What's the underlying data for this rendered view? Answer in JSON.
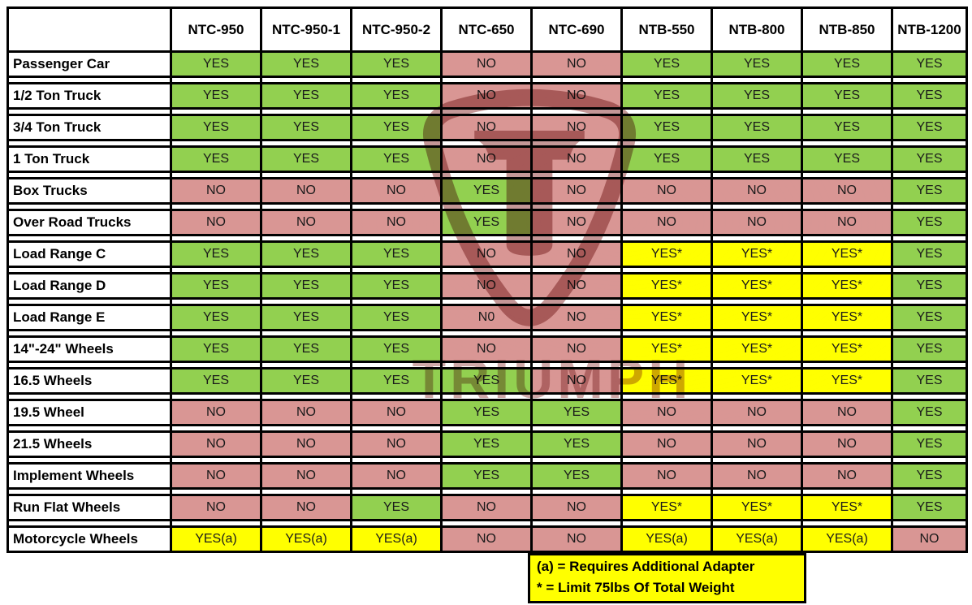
{
  "chart_data": {
    "type": "table",
    "columns": [
      "NTC-950",
      "NTC-950-1",
      "NTC-950-2",
      "NTC-650",
      "NTC-690",
      "NTB-550",
      "NTB-800",
      "NTB-850",
      "NTB-1200"
    ],
    "rows": [
      {
        "label": "Passenger Car",
        "values": [
          "YES",
          "YES",
          "YES",
          "NO",
          "NO",
          "YES",
          "YES",
          "YES",
          "YES"
        ]
      },
      {
        "label": "1/2 Ton Truck",
        "values": [
          "YES",
          "YES",
          "YES",
          "NO",
          "NO",
          "YES",
          "YES",
          "YES",
          "YES"
        ]
      },
      {
        "label": "3/4 Ton Truck",
        "values": [
          "YES",
          "YES",
          "YES",
          "NO",
          "NO",
          "YES",
          "YES",
          "YES",
          "YES"
        ]
      },
      {
        "label": "1 Ton Truck",
        "values": [
          "YES",
          "YES",
          "YES",
          "NO",
          "NO",
          "YES",
          "YES",
          "YES",
          "YES"
        ]
      },
      {
        "label": "Box Trucks",
        "values": [
          "NO",
          "NO",
          "NO",
          "YES",
          "NO",
          "NO",
          "NO",
          "NO",
          "YES"
        ]
      },
      {
        "label": "Over Road Trucks",
        "values": [
          "NO",
          "NO",
          "NO",
          "YES",
          "NO",
          "NO",
          "NO",
          "NO",
          "YES"
        ]
      },
      {
        "label": "Load Range C",
        "values": [
          "YES",
          "YES",
          "YES",
          "NO",
          "NO",
          "YES*",
          "YES*",
          "YES*",
          "YES"
        ]
      },
      {
        "label": "Load Range D",
        "values": [
          "YES",
          "YES",
          "YES",
          "NO",
          "NO",
          "YES*",
          "YES*",
          "YES*",
          "YES"
        ]
      },
      {
        "label": "Load Range E",
        "values": [
          "YES",
          "YES",
          "YES",
          "N0",
          "NO",
          "YES*",
          "YES*",
          "YES*",
          "YES"
        ]
      },
      {
        "label": "14\"-24\" Wheels",
        "values": [
          "YES",
          "YES",
          "YES",
          "NO",
          "NO",
          "YES*",
          "YES*",
          "YES*",
          "YES"
        ]
      },
      {
        "label": "16.5 Wheels",
        "values": [
          "YES",
          "YES",
          "YES",
          "YES",
          "NO",
          "YES*",
          "YES*",
          "YES*",
          "YES"
        ]
      },
      {
        "label": "19.5 Wheel",
        "values": [
          "NO",
          "NO",
          "NO",
          "YES",
          "YES",
          "NO",
          "NO",
          "NO",
          "YES"
        ]
      },
      {
        "label": "21.5 Wheels",
        "values": [
          "NO",
          "NO",
          "NO",
          "YES",
          "YES",
          "NO",
          "NO",
          "NO",
          "YES"
        ]
      },
      {
        "label": "Implement Wheels",
        "values": [
          "NO",
          "NO",
          "NO",
          "YES",
          "YES",
          "NO",
          "NO",
          "NO",
          "YES"
        ]
      },
      {
        "label": "Run Flat Wheels",
        "values": [
          "NO",
          "NO",
          "YES",
          "NO",
          "NO",
          "YES*",
          "YES*",
          "YES*",
          "YES"
        ]
      },
      {
        "label": "Motorcycle Wheels",
        "values": [
          "YES(a)",
          "YES(a)",
          "YES(a)",
          "NO",
          "NO",
          "YES(a)",
          "YES(a)",
          "YES(a)",
          "NO"
        ]
      }
    ],
    "legend_position": "bottom-right",
    "grid": true
  },
  "legend": {
    "line1": "(a) = Requires Additional Adapter",
    "line2": "* = Limit 75lbs Of Total Weight"
  },
  "watermark": {
    "text": "TRIUMPH"
  },
  "colors": {
    "yes": "#92D050",
    "no": "#D99694",
    "conditional": "#FFFF00",
    "legend_bg": "#FFFF00",
    "border": "#000000",
    "watermark": "rgba(138,48,48,0.5)"
  }
}
